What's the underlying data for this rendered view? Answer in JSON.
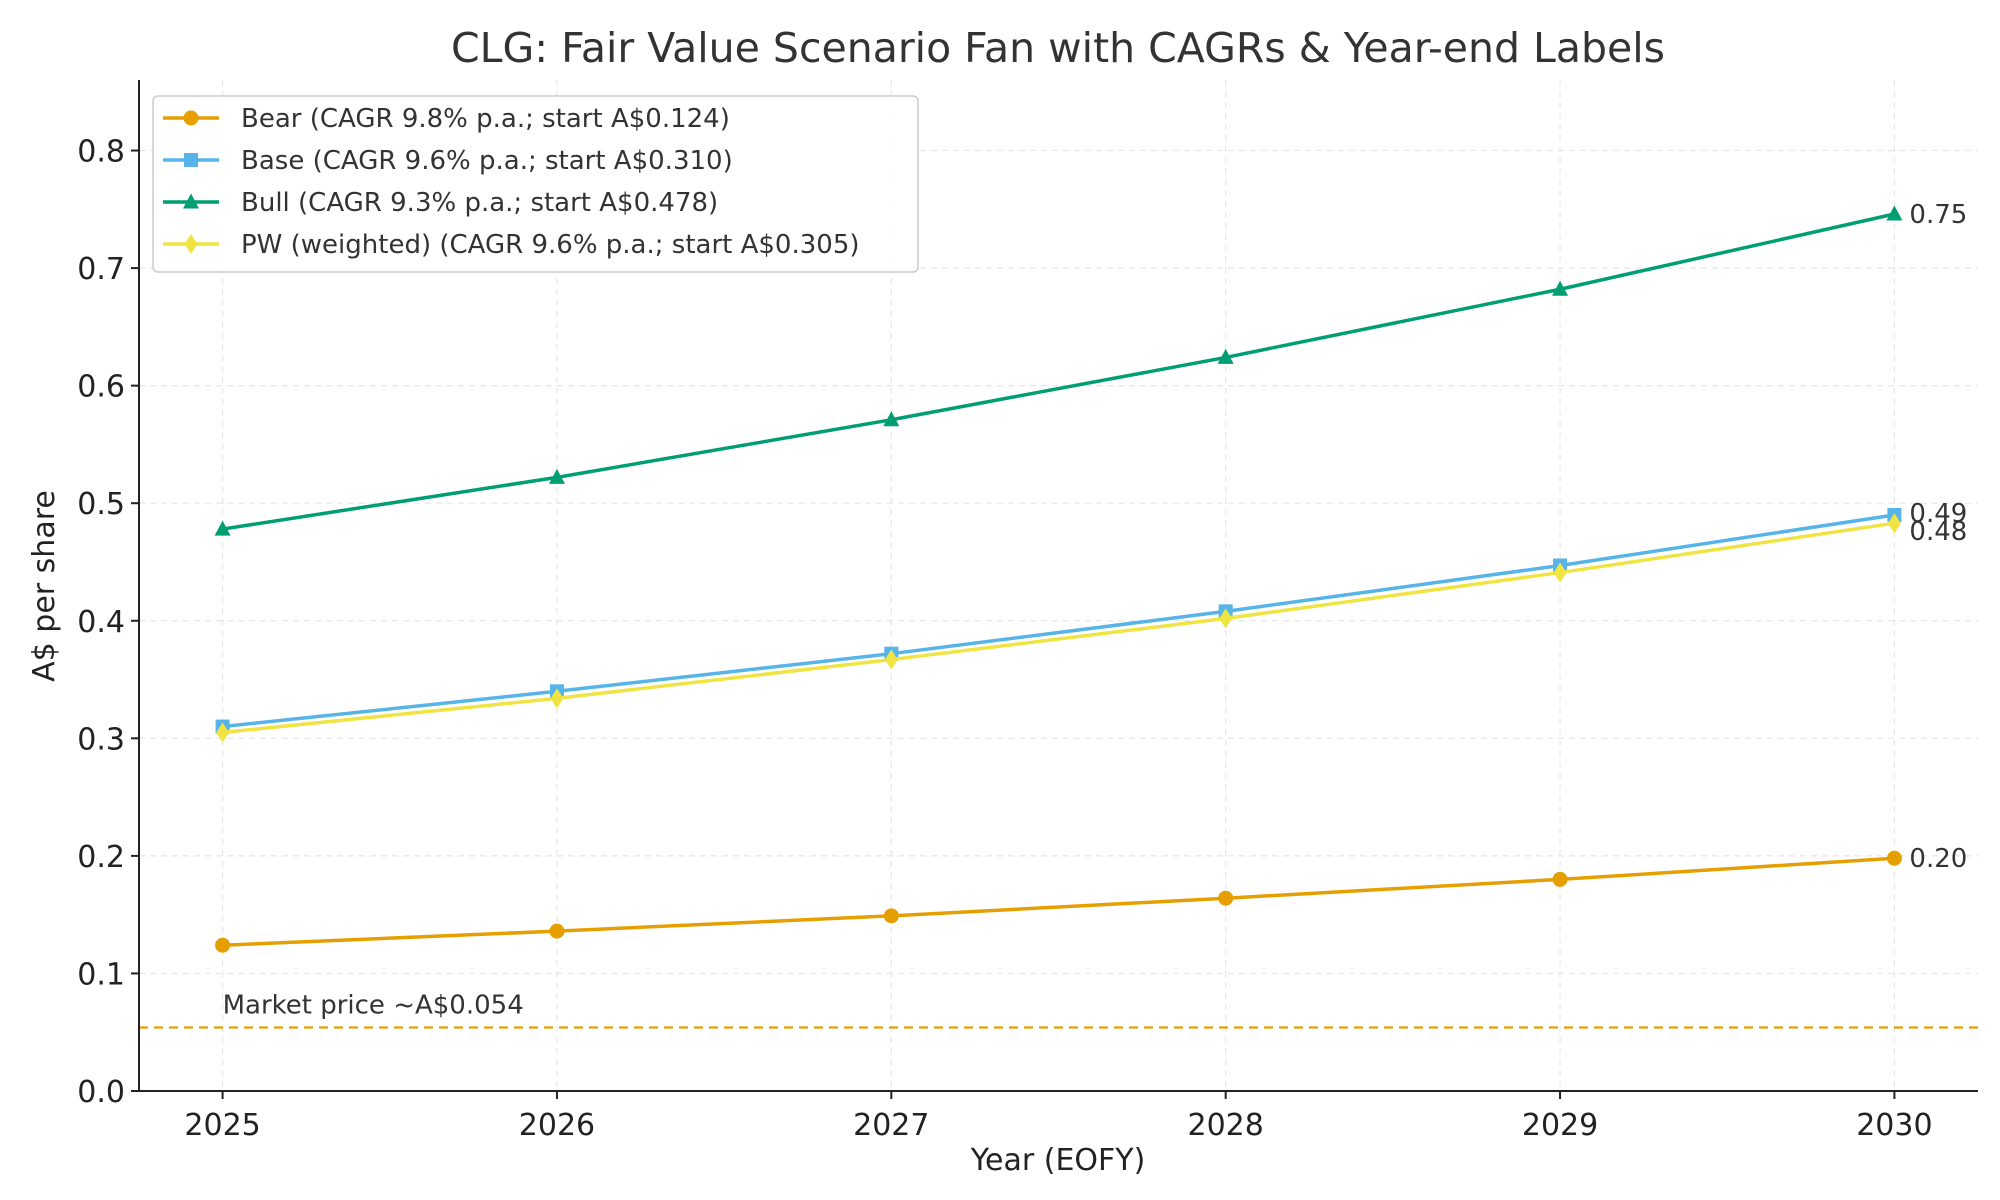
{
  "chart_data": {
    "type": "line",
    "title": "CLG: Fair Value Scenario Fan with CAGRs & Year-end Labels",
    "xlabel": "Year (EOFY)",
    "ylabel": "A$ per share",
    "x": [
      2025,
      2026,
      2027,
      2028,
      2029,
      2030
    ],
    "xlim": [
      2024.75,
      2030.25
    ],
    "ylim": [
      0.0,
      0.86
    ],
    "yticks": [
      0.0,
      0.1,
      0.2,
      0.3,
      0.4,
      0.5,
      0.6,
      0.7,
      0.8
    ],
    "ytick_labels": [
      "0.0",
      "0.1",
      "0.2",
      "0.3",
      "0.4",
      "0.5",
      "0.6",
      "0.7",
      "0.8"
    ],
    "xtick_labels": [
      "2025",
      "2026",
      "2027",
      "2028",
      "2029",
      "2030"
    ],
    "grid": true,
    "legend_position": "top-left",
    "series": [
      {
        "name": "Bear (CAGR 9.8% p.a.; start A$0.124)",
        "marker": "circle",
        "color": "#E69F00",
        "values": [
          0.124,
          0.136,
          0.149,
          0.164,
          0.18,
          0.198
        ],
        "end_label": "0.20"
      },
      {
        "name": "Base (CAGR 9.6% p.a.; start A$0.310)",
        "marker": "square",
        "color": "#56B4E9",
        "values": [
          0.31,
          0.34,
          0.372,
          0.408,
          0.447,
          0.49
        ],
        "end_label": "0.49"
      },
      {
        "name": "Bull (CAGR 9.3% p.a.; start A$0.478)",
        "marker": "triangle",
        "color": "#009E73",
        "values": [
          0.478,
          0.522,
          0.571,
          0.624,
          0.682,
          0.746
        ],
        "end_label": "0.75"
      },
      {
        "name": "PW (weighted) (CAGR 9.6% p.a.; start A$0.305)",
        "marker": "diamond",
        "color": "#F0E442",
        "values": [
          0.305,
          0.334,
          0.367,
          0.402,
          0.441,
          0.483
        ],
        "end_label": "0.48"
      }
    ],
    "reference_line": {
      "value": 0.054,
      "label": "Market price ~A$0.054",
      "color": "#E69F00",
      "style": "dashed"
    }
  }
}
